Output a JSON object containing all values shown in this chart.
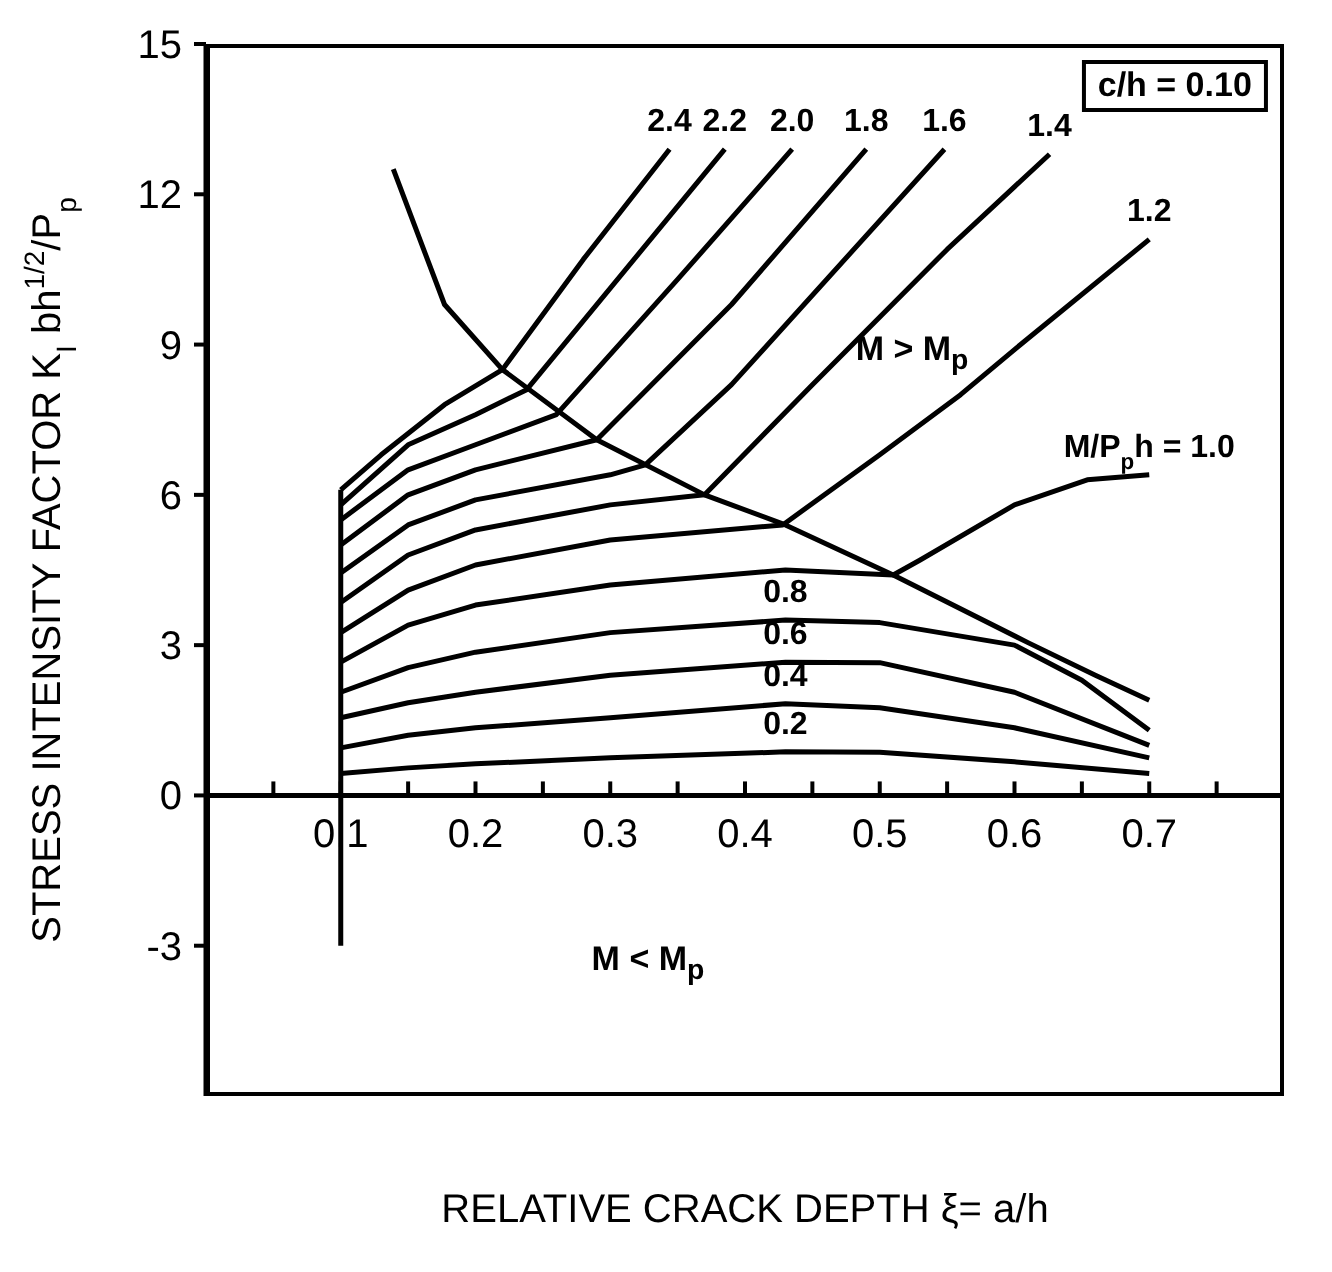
{
  "chart_data": {
    "type": "line",
    "xlabel": "RELATIVE CRACK DEPTH  ξ= a/h",
    "ylabel": "STRESS INTENSITY FACTOR K$_{I}$ bh$^{1/2}$/P$_{p}$",
    "xlim": [
      0,
      0.8
    ],
    "ylim": [
      -6,
      15
    ],
    "xticks": [
      {
        "value": 0.05,
        "label": null
      },
      0.1,
      {
        "value": 0.15,
        "label": null
      },
      0.2,
      {
        "value": 0.25,
        "label": null
      },
      0.3,
      {
        "value": 0.35,
        "label": null
      },
      0.4,
      {
        "value": 0.45,
        "label": null
      },
      0.5,
      {
        "value": 0.55,
        "label": null
      },
      0.6,
      {
        "value": 0.65,
        "label": null
      },
      0.7,
      {
        "value": 0.75,
        "label": null
      }
    ],
    "yticks": [
      -3,
      0,
      3,
      6,
      9,
      12,
      15
    ],
    "series": [
      {
        "color": "#000000",
        "x": [
          0.1,
          0.1
        ],
        "values": [
          -3,
          6.1
        ]
      },
      {
        "color": "#000000",
        "x": [
          0.139,
          0.177,
          0.22,
          0.29,
          0.37,
          0.43,
          0.51,
          0.61,
          0.66,
          0.7
        ],
        "values": [
          12.5,
          9.8,
          8.5,
          7.1,
          6.0,
          5.4,
          4.4,
          3.05,
          2.4,
          1.9
        ]
      },
      {
        "name": "0.2",
        "color": "#000000",
        "x": [
          0.1,
          0.15,
          0.2,
          0.3,
          0.43,
          0.5,
          0.6,
          0.7
        ],
        "values": [
          0.44,
          0.55,
          0.63,
          0.75,
          0.87,
          0.86,
          0.67,
          0.44
        ]
      },
      {
        "name": "0.4",
        "color": "#000000",
        "x": [
          0.1,
          0.15,
          0.2,
          0.3,
          0.43,
          0.5,
          0.6,
          0.7
        ],
        "values": [
          0.95,
          1.2,
          1.35,
          1.55,
          1.83,
          1.75,
          1.35,
          0.75
        ]
      },
      {
        "name": "0.6",
        "color": "#000000",
        "x": [
          0.1,
          0.15,
          0.2,
          0.3,
          0.43,
          0.5,
          0.6,
          0.7
        ],
        "values": [
          1.55,
          1.85,
          2.06,
          2.4,
          2.66,
          2.65,
          2.06,
          1.0
        ]
      },
      {
        "name": "0.8",
        "color": "#000000",
        "x": [
          0.1,
          0.15,
          0.2,
          0.3,
          0.43,
          0.5,
          0.6,
          0.65,
          0.7
        ],
        "values": [
          2.06,
          2.55,
          2.86,
          3.25,
          3.5,
          3.45,
          3.0,
          2.3,
          1.3
        ]
      },
      {
        "name": "M/P$_{p}$h = 1.0",
        "color": "#000000",
        "x": [
          0.1,
          0.15,
          0.2,
          0.3,
          0.43,
          0.51,
          0.53,
          0.6,
          0.654,
          0.7
        ],
        "values": [
          2.66,
          3.4,
          3.8,
          4.2,
          4.5,
          4.4,
          4.7,
          5.8,
          6.3,
          6.4
        ]
      },
      {
        "name": "1.2",
        "color": "#000000",
        "x": [
          0.1,
          0.15,
          0.2,
          0.3,
          0.428,
          0.5,
          0.56,
          0.6,
          0.7
        ],
        "values": [
          3.25,
          4.1,
          4.6,
          5.1,
          5.4,
          6.8,
          8.0,
          8.9,
          11.1
        ]
      },
      {
        "name": "1.4",
        "color": "#000000",
        "x": [
          0.1,
          0.15,
          0.2,
          0.3,
          0.37,
          0.45,
          0.55,
          0.626
        ],
        "values": [
          3.85,
          4.8,
          5.3,
          5.8,
          6.0,
          8.2,
          10.9,
          12.8
        ]
      },
      {
        "name": "1.6",
        "color": "#000000",
        "x": [
          0.1,
          0.15,
          0.2,
          0.3,
          0.326,
          0.39,
          0.548
        ],
        "values": [
          4.44,
          5.4,
          5.9,
          6.4,
          6.6,
          8.2,
          12.9
        ]
      },
      {
        "name": "1.8",
        "color": "#000000",
        "x": [
          0.1,
          0.15,
          0.2,
          0.29,
          0.39,
          0.49
        ],
        "values": [
          5.0,
          6.0,
          6.5,
          7.1,
          9.8,
          12.9
        ]
      },
      {
        "name": "2.0",
        "color": "#000000",
        "x": [
          0.1,
          0.15,
          0.2,
          0.26,
          0.35,
          0.435
        ],
        "values": [
          5.5,
          6.5,
          7.0,
          7.6,
          10.3,
          12.9
        ]
      },
      {
        "name": "2.2",
        "color": "#000000",
        "x": [
          0.1,
          0.15,
          0.2,
          0.238,
          0.385
        ],
        "values": [
          5.8,
          7.0,
          7.6,
          8.1,
          12.9
        ]
      },
      {
        "name": "2.4",
        "color": "#000000",
        "x": [
          0.1,
          0.13,
          0.177,
          0.22,
          0.28,
          0.344
        ],
        "values": [
          6.1,
          6.8,
          7.8,
          8.5,
          10.7,
          12.9
        ]
      }
    ],
    "annotations": [
      "c/h = 0.10",
      "M > M$_{p}$",
      "M < M$_{p}$"
    ]
  }
}
